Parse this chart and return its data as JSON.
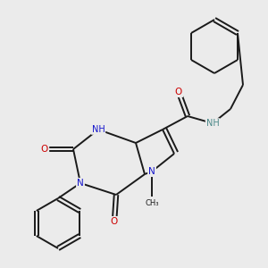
{
  "bg_color": "#ebebeb",
  "bond_color": "#1a1a1a",
  "atom_colors": {
    "N": "#1414cc",
    "O": "#cc0000",
    "NH": "#4a8888",
    "C": "#1a1a1a"
  },
  "bond_width": 1.4,
  "dbl_sep": 0.09
}
